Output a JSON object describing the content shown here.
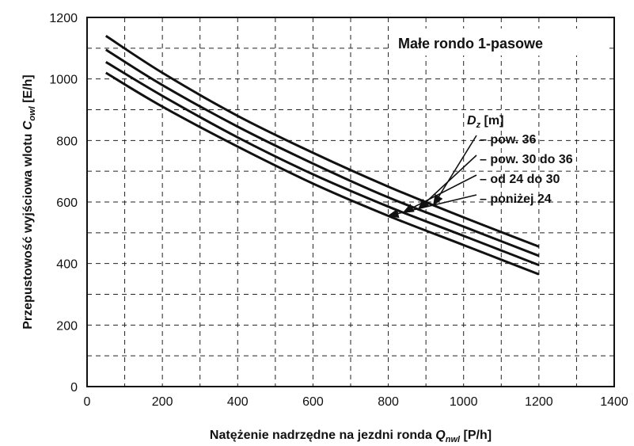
{
  "chart_data": {
    "type": "line",
    "title": "Małe rondo 1-pasowe",
    "xlabel": {
      "text": "Natężenie nadrzędne na jezdni ronda ",
      "symbol": "Q",
      "sub": "nwl",
      "unit": " [P/h]"
    },
    "ylabel": {
      "text": "Przepustowość wyjściowa wlotu ",
      "symbol": "C",
      "sub": "owl",
      "unit": " [E/h]"
    },
    "xlim": [
      0,
      1400
    ],
    "ylim": [
      0,
      1200
    ],
    "x_ticks": [
      0,
      200,
      400,
      600,
      800,
      1000,
      1200,
      1400
    ],
    "y_ticks": [
      0,
      200,
      400,
      600,
      800,
      1000,
      1200
    ],
    "grid": true,
    "legend": {
      "symbol": "D",
      "sub": "z",
      "unit": " [m]"
    },
    "x": [
      50,
      200,
      400,
      600,
      800,
      1000,
      1200
    ],
    "series": [
      {
        "name": "pow. 36",
        "values": [
          1140,
          1020,
          880,
          760,
          650,
          550,
          455
        ]
      },
      {
        "name": "pow. 30 do 36",
        "values": [
          1095,
          980,
          845,
          725,
          615,
          520,
          425
        ]
      },
      {
        "name": "od 24 do 30",
        "values": [
          1055,
          945,
          810,
          690,
          585,
          490,
          395
        ]
      },
      {
        "name": "poniżej 24",
        "values": [
          1020,
          910,
          780,
          660,
          555,
          460,
          365
        ]
      }
    ]
  }
}
